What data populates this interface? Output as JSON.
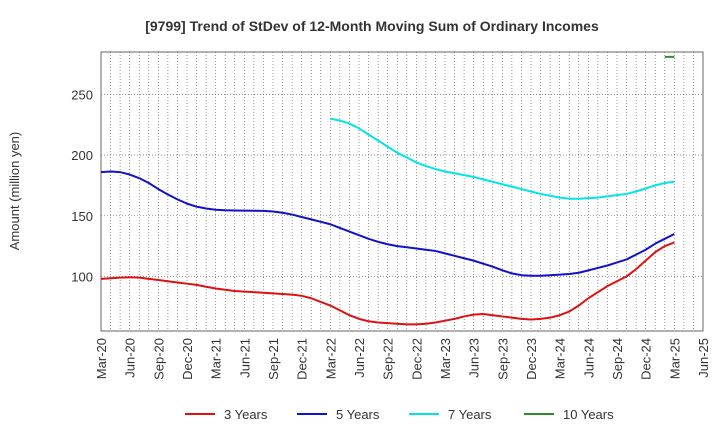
{
  "chart_data": {
    "type": "line",
    "title": "[9799]  Trend of StDev of 12-Month Moving Sum of Ordinary Incomes",
    "xlabel": "",
    "ylabel": "Amount (million yen)",
    "x_ticks": [
      "Mar-20",
      "Jun-20",
      "Sep-20",
      "Dec-20",
      "Mar-21",
      "Jun-21",
      "Sep-21",
      "Dec-21",
      "Mar-22",
      "Jun-22",
      "Sep-22",
      "Dec-22",
      "Mar-23",
      "Jun-23",
      "Sep-23",
      "Dec-23",
      "Mar-24",
      "Jun-24",
      "Sep-24",
      "Dec-24",
      "Mar-25",
      "Jun-25"
    ],
    "y_ticks": [
      100,
      150,
      200,
      250
    ],
    "ylim": [
      55,
      285
    ],
    "grid": true,
    "legend_position": "bottom",
    "series": [
      {
        "name": "3 Years",
        "color": "#dd1111",
        "x": [
          "2020-03",
          "2020-04",
          "2020-05",
          "2020-06",
          "2020-07",
          "2020-08",
          "2020-09",
          "2020-10",
          "2020-11",
          "2020-12",
          "2021-01",
          "2021-02",
          "2021-03",
          "2021-04",
          "2021-05",
          "2021-06",
          "2021-07",
          "2021-08",
          "2021-09",
          "2021-10",
          "2021-11",
          "2021-12",
          "2022-01",
          "2022-02",
          "2022-03",
          "2022-04",
          "2022-05",
          "2022-06",
          "2022-07",
          "2022-08",
          "2022-09",
          "2022-10",
          "2022-11",
          "2022-12",
          "2023-01",
          "2023-02",
          "2023-03",
          "2023-04",
          "2023-05",
          "2023-06",
          "2023-07",
          "2023-08",
          "2023-09",
          "2023-10",
          "2023-11",
          "2023-12",
          "2024-01",
          "2024-02",
          "2024-03",
          "2024-04",
          "2024-05",
          "2024-06",
          "2024-07",
          "2024-08",
          "2024-09",
          "2024-10",
          "2024-11",
          "2024-12",
          "2025-01",
          "2025-02",
          "2025-03"
        ],
        "values": [
          98,
          98.5,
          99,
          99.3,
          99,
          98,
          97,
          96,
          95,
          94,
          93,
          91.5,
          90,
          89,
          88,
          87.5,
          87,
          86.5,
          86,
          85.5,
          85,
          84,
          82,
          79,
          76,
          72,
          68,
          65,
          63,
          62,
          61.5,
          61,
          60.5,
          60.5,
          61,
          62,
          63.5,
          65,
          67,
          68.5,
          69,
          68,
          67,
          66,
          65,
          64.5,
          65,
          66,
          68,
          71,
          76,
          82,
          87,
          92,
          96,
          100,
          106,
          113,
          120,
          125,
          128
        ]
      },
      {
        "name": "5 Years",
        "color": "#1111cc",
        "x": [
          "2020-03",
          "2020-04",
          "2020-05",
          "2020-06",
          "2020-07",
          "2020-08",
          "2020-09",
          "2020-10",
          "2020-11",
          "2020-12",
          "2021-01",
          "2021-02",
          "2021-03",
          "2021-04",
          "2021-05",
          "2021-06",
          "2021-07",
          "2021-08",
          "2021-09",
          "2021-10",
          "2021-11",
          "2021-12",
          "2022-01",
          "2022-02",
          "2022-03",
          "2022-04",
          "2022-05",
          "2022-06",
          "2022-07",
          "2022-08",
          "2022-09",
          "2022-10",
          "2022-11",
          "2022-12",
          "2023-01",
          "2023-02",
          "2023-03",
          "2023-04",
          "2023-05",
          "2023-06",
          "2023-07",
          "2023-08",
          "2023-09",
          "2023-10",
          "2023-11",
          "2023-12",
          "2024-01",
          "2024-02",
          "2024-03",
          "2024-04",
          "2024-05",
          "2024-06",
          "2024-07",
          "2024-08",
          "2024-09",
          "2024-10",
          "2024-11",
          "2024-12",
          "2025-01",
          "2025-02",
          "2025-03"
        ],
        "values": [
          186,
          186.5,
          186,
          184,
          181,
          177,
          172,
          167.5,
          163.5,
          160,
          157.5,
          156,
          155,
          154.5,
          154.3,
          154.2,
          154.1,
          154,
          153.5,
          152.5,
          151,
          149,
          147,
          145,
          143,
          140,
          137,
          134,
          131,
          128.5,
          126.5,
          125,
          124,
          123,
          122,
          121,
          119,
          117,
          115,
          113,
          110.5,
          108,
          105,
          102.5,
          101,
          100.5,
          100.5,
          101,
          101.5,
          102,
          103,
          105,
          107,
          109,
          111.5,
          114,
          118,
          122,
          127,
          131,
          135
        ]
      },
      {
        "name": "7 Years",
        "color": "#00e5e5",
        "x": [
          "2022-03",
          "2022-04",
          "2022-05",
          "2022-06",
          "2022-07",
          "2022-08",
          "2022-09",
          "2022-10",
          "2022-11",
          "2022-12",
          "2023-01",
          "2023-02",
          "2023-03",
          "2023-04",
          "2023-05",
          "2023-06",
          "2023-07",
          "2023-08",
          "2023-09",
          "2023-10",
          "2023-11",
          "2023-12",
          "2024-01",
          "2024-02",
          "2024-03",
          "2024-04",
          "2024-05",
          "2024-06",
          "2024-07",
          "2024-08",
          "2024-09",
          "2024-10",
          "2024-11",
          "2024-12",
          "2025-01",
          "2025-02",
          "2025-03"
        ],
        "values": [
          230,
          228.5,
          226,
          222,
          217,
          212,
          207,
          202,
          198,
          194,
          191,
          188.5,
          186.5,
          185,
          183.5,
          182,
          180,
          178,
          176,
          174,
          172,
          170,
          168,
          166.5,
          165,
          164,
          164,
          164.5,
          165,
          166,
          167,
          168,
          170,
          172.5,
          175,
          177,
          178
        ]
      },
      {
        "name": "10 Years",
        "color": "#2e8b2e",
        "x": [
          "2025-02",
          "2025-03"
        ],
        "values": [
          281,
          281
        ]
      }
    ]
  }
}
